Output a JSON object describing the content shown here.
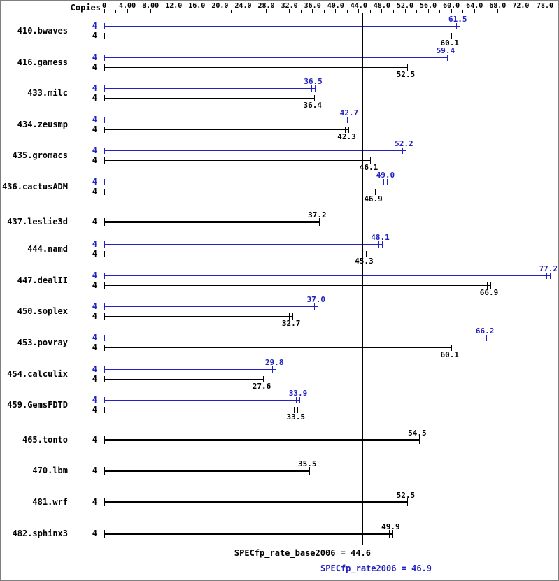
{
  "header": {
    "copies_label": "Copies"
  },
  "axis": {
    "min": 0,
    "max": 78,
    "minor_step": 2,
    "tick_values": [
      0,
      4,
      8,
      12,
      16,
      20,
      24,
      28,
      32,
      36,
      40,
      44,
      48,
      52,
      56,
      60,
      64,
      68,
      72,
      78
    ],
    "tick_labels": [
      "0",
      "4.00",
      "8.00",
      "12.0",
      "16.0",
      "20.0",
      "24.0",
      "28.0",
      "32.0",
      "36.0",
      "40.0",
      "44.0",
      "48.0",
      "52.0",
      "56.0",
      "60.0",
      "64.0",
      "68.0",
      "72.0",
      "78.0"
    ]
  },
  "chart_data": {
    "type": "bar",
    "orientation": "horizontal",
    "xlim": [
      0,
      78
    ],
    "series": [
      {
        "name": "peak (SPECfp_rate2006)",
        "color": "#2222c2"
      },
      {
        "name": "base (SPECfp_rate_base2006)",
        "color": "#000000"
      }
    ],
    "benchmarks": [
      {
        "name": "410.bwaves",
        "copies": 4,
        "peak": 61.5,
        "base": 60.1
      },
      {
        "name": "416.gamess",
        "copies": 4,
        "peak": 59.4,
        "base": 52.5
      },
      {
        "name": "433.milc",
        "copies": 4,
        "peak": 36.5,
        "base": 36.4
      },
      {
        "name": "434.zeusmp",
        "copies": 4,
        "peak": 42.7,
        "base": 42.3
      },
      {
        "name": "435.gromacs",
        "copies": 4,
        "peak": 52.2,
        "base": 46.1
      },
      {
        "name": "436.cactusADM",
        "copies": 4,
        "peak": 49.0,
        "base": 46.9
      },
      {
        "name": "437.leslie3d",
        "copies": 4,
        "peak": null,
        "base": 37.2
      },
      {
        "name": "444.namd",
        "copies": 4,
        "peak": 48.1,
        "base": 45.3
      },
      {
        "name": "447.dealII",
        "copies": 4,
        "peak": 77.2,
        "base": 66.9
      },
      {
        "name": "450.soplex",
        "copies": 4,
        "peak": 37.0,
        "base": 32.7
      },
      {
        "name": "453.povray",
        "copies": 4,
        "peak": 66.2,
        "base": 60.1
      },
      {
        "name": "454.calculix",
        "copies": 4,
        "peak": 29.8,
        "base": 27.6
      },
      {
        "name": "459.GemsFDTD",
        "copies": 4,
        "peak": 33.9,
        "base": 33.5
      },
      {
        "name": "465.tonto",
        "copies": 4,
        "peak": null,
        "base": 54.5
      },
      {
        "name": "470.lbm",
        "copies": 4,
        "peak": null,
        "base": 35.5
      },
      {
        "name": "481.wrf",
        "copies": 4,
        "peak": null,
        "base": 52.5
      },
      {
        "name": "482.sphinx3",
        "copies": 4,
        "peak": null,
        "base": 49.9
      }
    ],
    "base_mean": 44.6,
    "peak_mean": 46.9,
    "reference_lines": [
      {
        "value": 44.6,
        "style": "solid",
        "color": "#000000"
      },
      {
        "value": 46.9,
        "style": "dotted",
        "color": "#2222c2"
      }
    ]
  },
  "summary": {
    "base_label": "SPECfp_rate_base2006 = 44.6",
    "peak_label": "SPECfp_rate2006 = 46.9"
  },
  "colors": {
    "peak_blue": "#2222c2",
    "base_black": "#000000"
  }
}
